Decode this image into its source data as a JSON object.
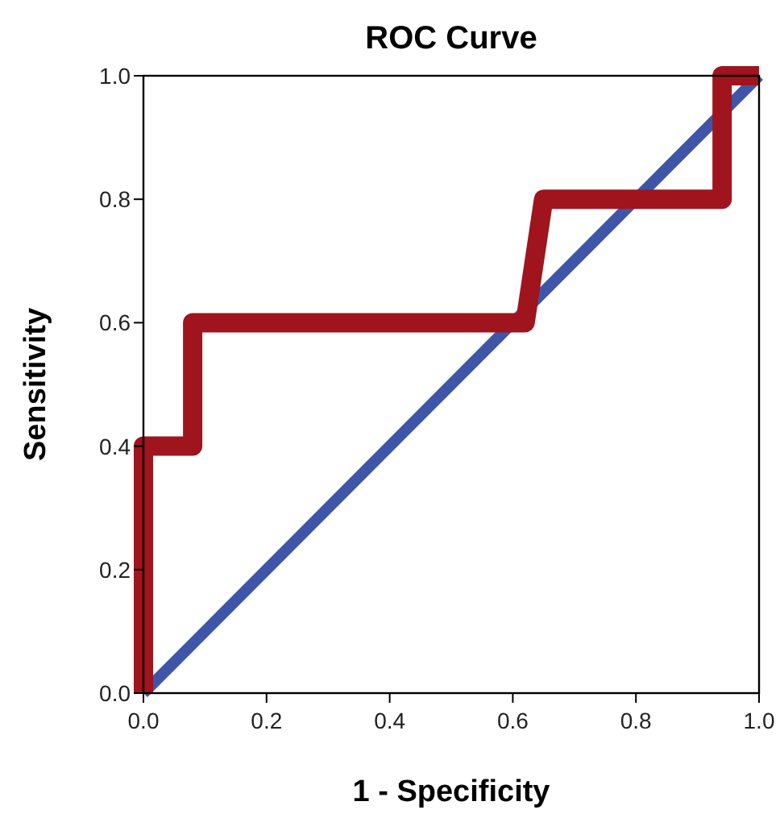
{
  "chart_data": {
    "type": "line",
    "title": "ROC Curve",
    "xlabel": "1 - Specificity",
    "ylabel": "Sensitivity",
    "xlim": [
      0,
      1
    ],
    "ylim": [
      0,
      1
    ],
    "xticks": [
      {
        "value": 0,
        "label": "0.0"
      },
      {
        "value": 0.2,
        "label": "0.2"
      },
      {
        "value": 0.4,
        "label": "0.4"
      },
      {
        "value": 0.6,
        "label": "0.6"
      },
      {
        "value": 0.8,
        "label": "0.8"
      },
      {
        "value": 1,
        "label": "1.0"
      }
    ],
    "yticks": [
      {
        "value": 0,
        "label": "0.0"
      },
      {
        "value": 0.2,
        "label": "0.2"
      },
      {
        "value": 0.4,
        "label": "0.4"
      },
      {
        "value": 0.6,
        "label": "0.6"
      },
      {
        "value": 0.8,
        "label": "0.8"
      },
      {
        "value": 1,
        "label": "1.0"
      }
    ],
    "grid": false,
    "marker": "none",
    "line_style": "solid",
    "series": [
      {
        "color": "#3f56a8",
        "x": [
          0,
          1
        ],
        "values": [
          0,
          1
        ]
      },
      {
        "color": "#a0141e",
        "x": [
          0,
          0,
          0.08,
          0.08,
          0.62,
          0.65,
          0.94,
          0.94,
          1
        ],
        "values": [
          0,
          0.4,
          0.4,
          0.6,
          0.6,
          0.8,
          0.8,
          1,
          1
        ]
      }
    ]
  }
}
